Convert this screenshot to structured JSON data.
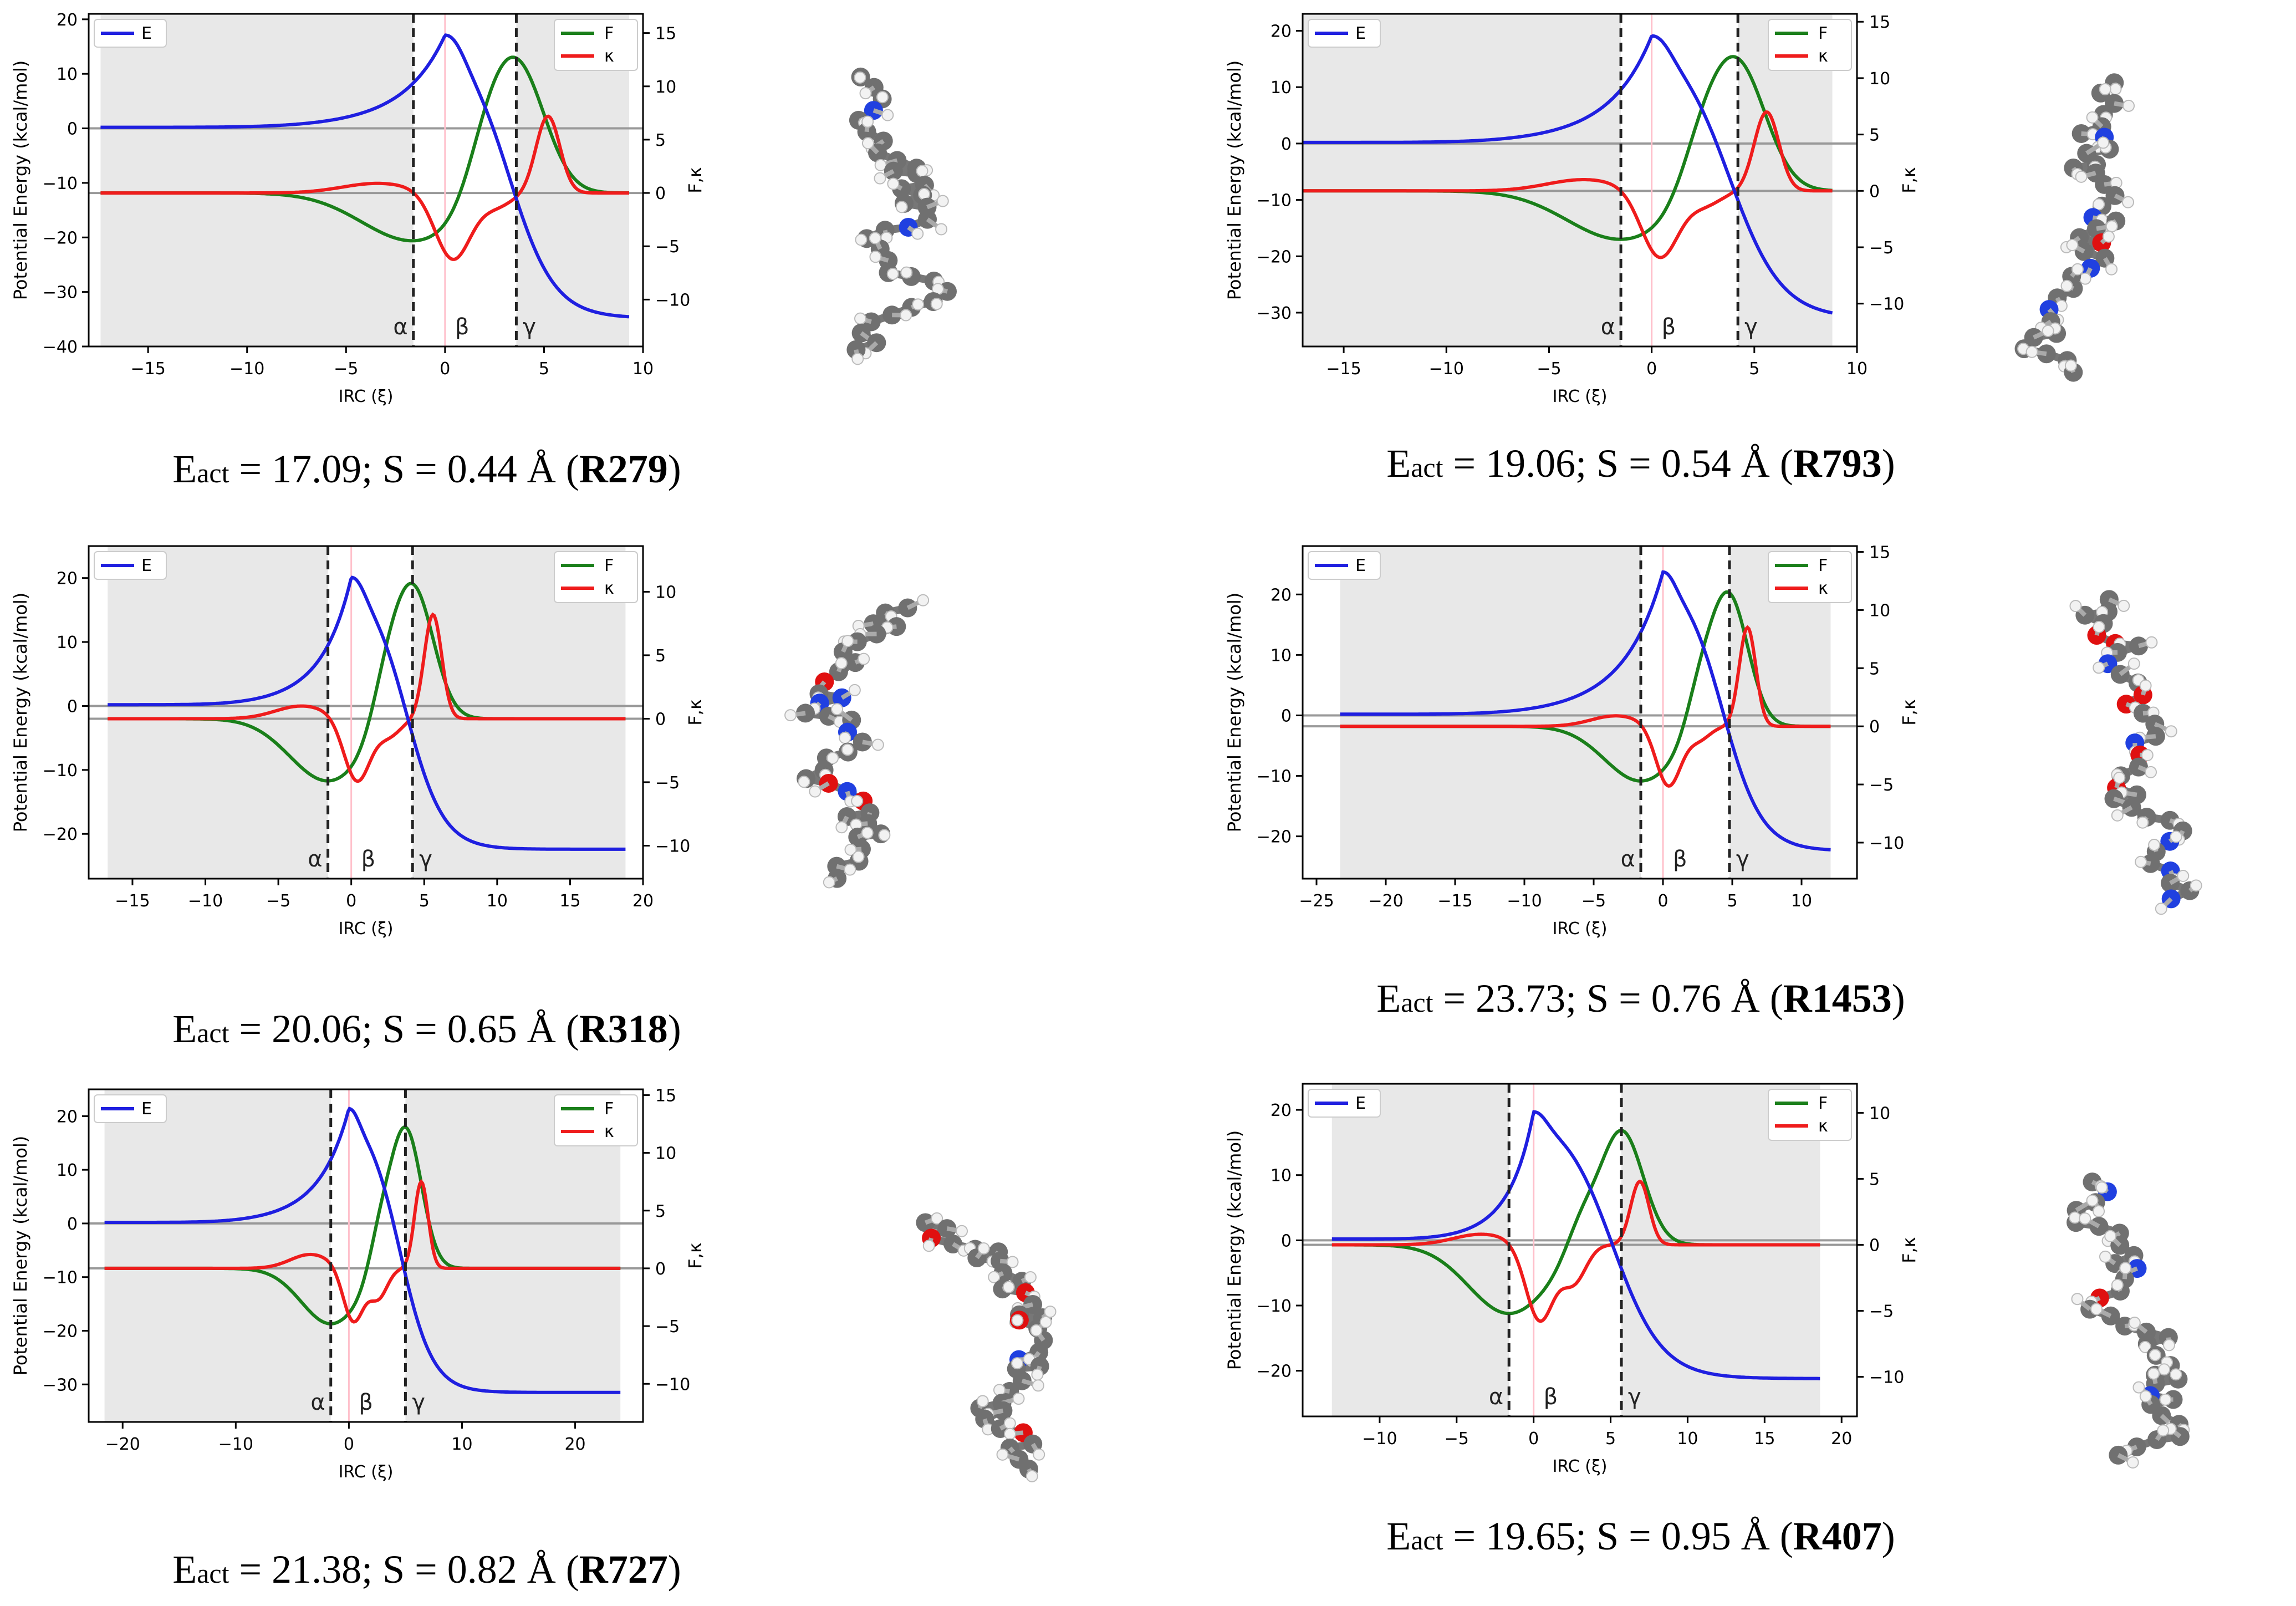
{
  "shared": {
    "y_label_left": "Potential Energy (kcal/mol)",
    "y_label_right": "F,κ",
    "x_label": "IRC (ξ)",
    "legend_left": [
      "E"
    ],
    "legend_right": [
      "F",
      "κ"
    ],
    "region_labels": [
      "α",
      "β",
      "γ"
    ],
    "caption_prefix": "E",
    "caption_sub": "act",
    "caption_unit": "Å",
    "colors": {
      "E": "#1f1fe0",
      "F": "#1a7f1a",
      "kappa": "#ef1c1c",
      "shade": "#e8e8e8"
    }
  },
  "chart_data": [
    {
      "type": "line",
      "id": "R279",
      "xlim": [
        -18,
        10
      ],
      "xticks": [
        -15,
        -10,
        -5,
        0,
        5,
        10
      ],
      "ylim": [
        -40,
        21
      ],
      "yticks": [
        -40,
        -30,
        -20,
        -10,
        0,
        10,
        20
      ],
      "y2lim": [
        -14.4,
        16.8
      ],
      "y2ticks": [
        -10,
        -5,
        0,
        5,
        10,
        15
      ],
      "xmin": -17.4,
      "xmax": 9.3,
      "alpha": -1.6,
      "beta": 0.0,
      "gamma": 3.6,
      "E_start": 0.2,
      "E_peak": 17.1,
      "E_end": -34.8,
      "F": {
        "min": -4.5,
        "max": 12.4,
        "peak_x": 3.6
      },
      "kappa": {
        "pre": 0.9,
        "dip1": -6.3,
        "dip2": -1.2,
        "peak": 7.2,
        "peak_x": 5.2
      },
      "caption": {
        "Eact": "17.09",
        "S": "0.44",
        "label": "R279"
      }
    },
    {
      "type": "line",
      "id": "R793",
      "xlim": [
        -17,
        10
      ],
      "xticks": [
        -15,
        -10,
        -5,
        0,
        5,
        10
      ],
      "ylim": [
        -36,
        23
      ],
      "yticks": [
        -30,
        -20,
        -10,
        0,
        10,
        20
      ],
      "y2lim": [
        -13.8,
        15.7
      ],
      "y2ticks": [
        -10,
        -5,
        0,
        5,
        10,
        15
      ],
      "xmin": -17.0,
      "xmax": 8.8,
      "alpha": -1.5,
      "beta": 0.0,
      "gamma": 4.2,
      "E_start": 0.2,
      "E_peak": 19.1,
      "E_end": -31.0,
      "F": {
        "min": -4.3,
        "max": 11.7,
        "peak_x": 4.1
      },
      "kappa": {
        "pre": 1.0,
        "dip1": -6.0,
        "dip2": -1.2,
        "peak": 7.0,
        "peak_x": 5.6
      },
      "caption": {
        "Eact": "19.06",
        "S": "0.54",
        "label": "R793"
      }
    },
    {
      "type": "line",
      "id": "R318",
      "xlim": [
        -18,
        20
      ],
      "xticks": [
        -15,
        -10,
        -5,
        0,
        5,
        10,
        15,
        20
      ],
      "ylim": [
        -27,
        25
      ],
      "yticks": [
        -20,
        -10,
        0,
        10,
        20
      ],
      "y2lim": [
        -12.6,
        13.6
      ],
      "y2ticks": [
        -10,
        -5,
        0,
        5,
        10
      ],
      "xmin": -16.7,
      "xmax": 18.8,
      "alpha": -1.6,
      "beta": 0.0,
      "gamma": 4.2,
      "E_start": 0.2,
      "E_peak": 20.1,
      "E_end": -22.4,
      "F": {
        "min": -4.9,
        "max": 10.6,
        "peak_x": 4.2
      },
      "kappa": {
        "pre": 1.0,
        "dip1": -5.0,
        "dip2": -1.3,
        "peak": 8.2,
        "peak_x": 5.6
      },
      "caption": {
        "Eact": "20.06",
        "S": "0.65",
        "label": "R318"
      }
    },
    {
      "type": "line",
      "id": "R1453",
      "xlim": [
        -26,
        14
      ],
      "xticks": [
        -25,
        -20,
        -15,
        -10,
        -5,
        0,
        5,
        10
      ],
      "ylim": [
        -27,
        28
      ],
      "yticks": [
        -20,
        -10,
        0,
        10,
        20
      ],
      "y2lim": [
        -13.1,
        15.5
      ],
      "y2ticks": [
        -10,
        -5,
        0,
        5,
        10,
        15
      ],
      "xmin": -23.3,
      "xmax": 12.1,
      "alpha": -1.6,
      "beta": 0.0,
      "gamma": 4.8,
      "E_start": 0.2,
      "E_peak": 23.7,
      "E_end": -22.4,
      "F": {
        "min": -4.7,
        "max": 11.5,
        "peak_x": 4.7
      },
      "kappa": {
        "pre": 0.9,
        "dip1": -5.2,
        "dip2": -1.1,
        "peak": 8.5,
        "peak_x": 6.1
      },
      "caption": {
        "Eact": "23.73",
        "S": "0.76",
        "label": "R1453"
      }
    },
    {
      "type": "line",
      "id": "R727",
      "xlim": [
        -23,
        26
      ],
      "xticks": [
        -20,
        -10,
        0,
        10,
        20
      ],
      "ylim": [
        -37,
        25
      ],
      "yticks": [
        -30,
        -20,
        -10,
        0,
        10,
        20
      ],
      "y2lim": [
        -13.3,
        15.5
      ],
      "y2ticks": [
        -10,
        -5,
        0,
        5,
        10,
        15
      ],
      "xmin": -21.6,
      "xmax": 24.0,
      "alpha": -1.6,
      "beta": 0.0,
      "gamma": 5.0,
      "E_start": 0.2,
      "E_peak": 21.4,
      "E_end": -31.5,
      "F": {
        "min": -4.8,
        "max": 12.2,
        "peak_x": 5.0
      },
      "kappa": {
        "pre": 1.2,
        "dip1": -4.7,
        "dip2": -2.5,
        "peak": 7.5,
        "peak_x": 6.4
      },
      "caption": {
        "Eact": "21.38",
        "S": "0.82",
        "label": "R727"
      }
    },
    {
      "type": "line",
      "id": "R407",
      "xlim": [
        -15,
        21
      ],
      "xticks": [
        -10,
        -5,
        0,
        5,
        10,
        15,
        20
      ],
      "ylim": [
        -27,
        24
      ],
      "yticks": [
        -20,
        -10,
        0,
        10,
        20
      ],
      "y2lim": [
        -13.0,
        12.2
      ],
      "y2ticks": [
        -10,
        -5,
        0,
        5,
        10
      ],
      "xmin": -13.1,
      "xmax": 18.6,
      "alpha": -1.6,
      "beta": 0.0,
      "gamma": 5.7,
      "E_start": 0.2,
      "E_peak": 19.7,
      "E_end": -21.2,
      "F": {
        "min": -5.2,
        "max": 8.7,
        "peak_x": 5.7
      },
      "kappa": {
        "pre": 0.8,
        "dip1": -5.8,
        "dip2": -2.8,
        "peak": 4.8,
        "peak_x": 6.9
      },
      "caption": {
        "Eact": "19.65",
        "S": "0.95",
        "label": "R407"
      }
    }
  ]
}
